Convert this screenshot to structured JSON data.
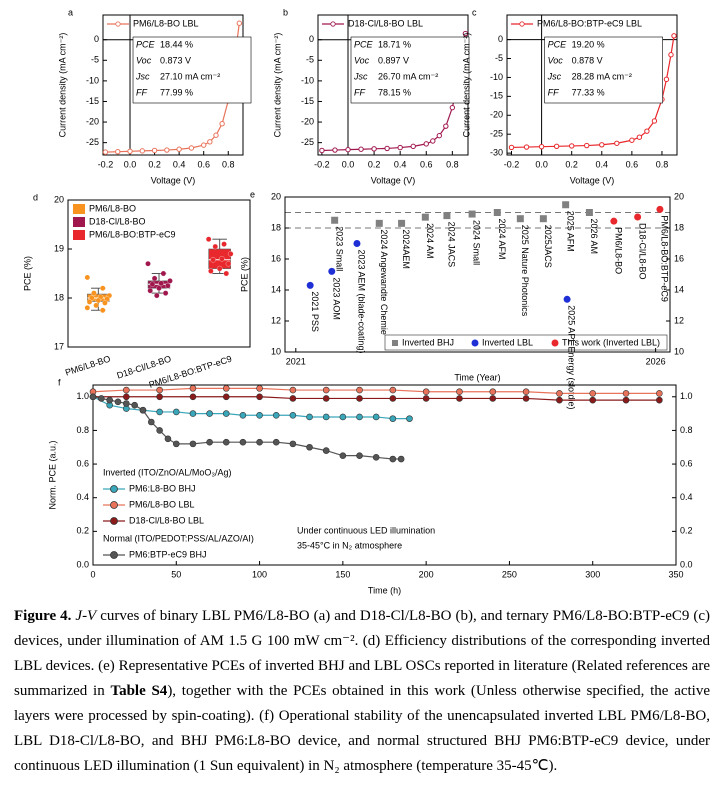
{
  "chart_data": [
    {
      "panel": "a",
      "type": "line",
      "x_label": "Voltage (V)",
      "y_label": "Current density (mA cm⁻²)",
      "xlim": [
        -0.22,
        0.92
      ],
      "ylim": [
        -28,
        6
      ],
      "xticks": [
        {
          "value": -0.2,
          "label": "-0.2"
        },
        {
          "value": 0,
          "label": "0.0"
        },
        0.2,
        0.4,
        0.6,
        0.8
      ],
      "yticks": [
        -25,
        -20,
        -15,
        -10,
        -5,
        0
      ],
      "series": [
        {
          "name": "PM6/L8-BO LBL",
          "color": "#e8735a",
          "x": [
            -0.2,
            -0.1,
            0,
            0.1,
            0.2,
            0.3,
            0.4,
            0.5,
            0.6,
            0.65,
            0.7,
            0.75,
            0.8,
            0.83,
            0.85,
            0.87,
            0.89
          ],
          "values": [
            -27.3,
            -27.2,
            -27.1,
            -27.0,
            -26.9,
            -26.8,
            -26.6,
            -26.3,
            -25.6,
            -24.8,
            -23.2,
            -20.4,
            -14.8,
            -9.6,
            -5.0,
            -0.5,
            4.0
          ]
        }
      ],
      "metrics": [
        {
          "name": "PCE",
          "value": "18.44 %"
        },
        {
          "name": "Voc",
          "value": "0.873 V"
        },
        {
          "name": "Jsc",
          "value": "27.10 mA cm⁻²"
        },
        {
          "name": "FF",
          "value": "77.99 %"
        }
      ]
    },
    {
      "panel": "b",
      "type": "line",
      "x_label": "Voltage (V)",
      "y_label": "Current density (mA cm⁻²)",
      "xlim": [
        -0.23,
        0.92
      ],
      "ylim": [
        -28,
        6
      ],
      "xticks": [
        {
          "value": -0.2,
          "label": "-0.2"
        },
        {
          "value": 0,
          "label": "0.0"
        },
        0.2,
        0.4,
        0.6,
        0.8
      ],
      "yticks": [
        -25,
        -20,
        -15,
        -10,
        -5,
        0
      ],
      "series": [
        {
          "name": "D18-Cl/L8-BO LBL",
          "color": "#a0174e",
          "x": [
            -0.2,
            -0.1,
            0,
            0.1,
            0.2,
            0.3,
            0.4,
            0.5,
            0.6,
            0.65,
            0.7,
            0.75,
            0.8,
            0.84,
            0.87,
            0.9
          ],
          "values": [
            -26.9,
            -26.8,
            -26.7,
            -26.6,
            -26.5,
            -26.4,
            -26.2,
            -25.9,
            -25.3,
            -24.6,
            -23.3,
            -21.0,
            -16.5,
            -10.5,
            -4.5,
            1.5
          ]
        }
      ],
      "metrics": [
        {
          "name": "PCE",
          "value": "18.71 %"
        },
        {
          "name": "Voc",
          "value": "0.897 V"
        },
        {
          "name": "Jsc",
          "value": "26.70 mA cm⁻²"
        },
        {
          "name": "FF",
          "value": "78.15 %"
        }
      ]
    },
    {
      "panel": "c",
      "type": "line",
      "x_label": "Voltage (V)",
      "y_label": "Current density (mA cm⁻²)",
      "xlim": [
        -0.23,
        0.9
      ],
      "ylim": [
        -30.5,
        6.5
      ],
      "xticks": [
        {
          "value": -0.2,
          "label": "-0.2"
        },
        {
          "value": 0,
          "label": "0.0"
        },
        0.2,
        0.4,
        0.6,
        0.8
      ],
      "yticks": [
        -30,
        -25,
        -20,
        -15,
        -10,
        -5,
        0
      ],
      "series": [
        {
          "name": "PM6/L8-BO:BTP-eC9 LBL",
          "color": "#e8282d",
          "x": [
            -0.2,
            -0.1,
            0,
            0.1,
            0.2,
            0.3,
            0.4,
            0.5,
            0.6,
            0.65,
            0.7,
            0.75,
            0.8,
            0.83,
            0.86,
            0.88
          ],
          "values": [
            -28.5,
            -28.4,
            -28.3,
            -28.2,
            -28.1,
            -28.0,
            -27.8,
            -27.4,
            -26.6,
            -25.8,
            -24.2,
            -21.5,
            -15.8,
            -10.5,
            -4.0,
            1.0
          ]
        }
      ],
      "metrics": [
        {
          "name": "PCE",
          "value": "19.20 %"
        },
        {
          "name": "Voc",
          "value": "0.878 V"
        },
        {
          "name": "Jsc",
          "value": "28.28 mA cm⁻²"
        },
        {
          "name": "FF",
          "value": "77.33 %"
        }
      ]
    },
    {
      "panel": "d",
      "type": "box",
      "y_label": "PCE (%)",
      "ylim": [
        17,
        20
      ],
      "yticks": [
        17,
        18,
        19,
        20
      ],
      "categories": [
        "PM6/L8-BO",
        "D18-Cl/L8-BO",
        "PM6/L8-BO:BTP-eC9"
      ],
      "series": [
        {
          "name": "PM6/L8-BO",
          "color": "#f7931e",
          "min": 17.75,
          "q1": 17.93,
          "median": 18.0,
          "q3": 18.08,
          "max": 18.2,
          "points": [
            18.42,
            18.2,
            18.1,
            18.05,
            18.02,
            18.0,
            17.98,
            17.95,
            17.92,
            17.9,
            17.85,
            17.8,
            17.75
          ]
        },
        {
          "name": "D18-Cl/L8-BO",
          "color": "#a0174e",
          "min": 18.1,
          "q1": 18.2,
          "median": 18.28,
          "q3": 18.35,
          "max": 18.5,
          "points": [
            18.7,
            18.5,
            18.4,
            18.35,
            18.3,
            18.28,
            18.25,
            18.2,
            18.15,
            18.1,
            18.05
          ]
        },
        {
          "name": "PM6/L8-BO:BTP-eC9",
          "color": "#e8282d",
          "min": 18.5,
          "q1": 18.6,
          "median": 18.78,
          "q3": 19.0,
          "max": 19.2,
          "points": [
            19.2,
            19.1,
            19.05,
            18.9,
            18.8,
            18.78,
            18.7,
            18.6,
            18.55,
            18.5
          ]
        }
      ]
    },
    {
      "panel": "e",
      "type": "scatter",
      "x_label": "Time (Year)",
      "y_label": "PCE (%)",
      "xlim": [
        2020.85,
        2026.2
      ],
      "xticks": [
        2021,
        2026
      ],
      "ylim": [
        10,
        20
      ],
      "yticks": [
        10,
        12,
        14,
        16,
        18,
        20
      ],
      "y2lim": [
        10,
        20
      ],
      "y2ticks": [
        10,
        12,
        14,
        16,
        18,
        20
      ],
      "ref_lines": [
        18,
        19
      ],
      "series": [
        {
          "name": "Inverted BHJ",
          "color": "#808080",
          "x": [
            2021.54,
            2022.16,
            2022.47,
            2022.8,
            2023.1,
            2023.45,
            2023.8,
            2024.12,
            2024.44,
            2024.75,
            2025.08
          ],
          "values": [
            18.5,
            18.3,
            18.3,
            18.7,
            18.8,
            18.9,
            19.0,
            18.6,
            18.6,
            19.5,
            19.0
          ],
          "labels": [
            "2023 Small",
            "2024 Angewandte Chemie",
            "2024AEM",
            "2024 AM",
            "2024 JACS",
            "2024 Small",
            "2024 AFM",
            "2025 Nature Photonics",
            "2025JACS",
            "2025 AFM",
            "2026 AM"
          ]
        },
        {
          "name": "Inverted LBL",
          "color": "#1f2fd6",
          "x": [
            2021.2,
            2021.5,
            2021.85,
            2024.77
          ],
          "values": [
            14.3,
            15.2,
            17.0,
            13.4
          ],
          "labels": [
            "2021 PSS",
            "2023 AOM",
            "2023 AEM (blade-coating)",
            "2025 APL Energy (slotdie)"
          ]
        },
        {
          "name": "This work (Inverted LBL)",
          "color": "#e8282d",
          "x": [
            2025.42,
            2025.75,
            2026.06
          ],
          "values": [
            18.44,
            18.71,
            19.2
          ],
          "labels": [
            "PM6/L8-BO",
            "D18-Cl/L8-BO",
            "PM6/L8-BO:BTP-eC9"
          ]
        }
      ]
    },
    {
      "panel": "f",
      "type": "line",
      "x_label": "Time (h)",
      "y_label": "Norm. PCE (a.u.)",
      "xlim": [
        0,
        350
      ],
      "xticks": [
        0,
        50,
        100,
        150,
        200,
        250,
        300,
        350
      ],
      "ylim": [
        0,
        1.07
      ],
      "yticks": [
        {
          "value": 0,
          "label": "0.0"
        },
        0.2,
        0.4,
        0.6,
        0.8,
        {
          "value": 1,
          "label": "1.0"
        }
      ],
      "y2lim": [
        0,
        1.07
      ],
      "y2ticks": [
        {
          "value": 0,
          "label": "0.0"
        },
        0.2,
        0.4,
        0.6,
        0.8,
        {
          "value": 1,
          "label": "1.0"
        }
      ],
      "legend_groups": [
        "Inverted (ITO/ZnO/AL/MoO₃/Ag)",
        "Normal (ITO/PEDOT:PSS/AL/AZO/AI)"
      ],
      "annotations": [
        "Under continuous LED illumination",
        "35-45°C in N₂ atmosphere"
      ],
      "series": [
        {
          "name": "PM6:L8-BO BHJ",
          "color": "#3aa6b9",
          "x": [
            0,
            10,
            20,
            30,
            40,
            50,
            60,
            70,
            80,
            90,
            100,
            110,
            120,
            130,
            140,
            150,
            160,
            170,
            180,
            190
          ],
          "values": [
            1.0,
            0.95,
            0.93,
            0.92,
            0.91,
            0.91,
            0.9,
            0.9,
            0.9,
            0.89,
            0.89,
            0.89,
            0.89,
            0.88,
            0.88,
            0.88,
            0.88,
            0.88,
            0.87,
            0.87
          ]
        },
        {
          "name": "PM6/L8-BO LBL",
          "color": "#e8735a",
          "x": [
            0,
            20,
            40,
            60,
            80,
            100,
            120,
            140,
            160,
            180,
            200,
            220,
            240,
            260,
            280,
            300,
            320,
            340
          ],
          "values": [
            1.03,
            1.04,
            1.04,
            1.05,
            1.05,
            1.05,
            1.04,
            1.04,
            1.04,
            1.04,
            1.03,
            1.03,
            1.03,
            1.03,
            1.02,
            1.02,
            1.02,
            1.02
          ]
        },
        {
          "name": "D18-Cl/L8-BO LBL",
          "color": "#8b1a1a",
          "x": [
            0,
            20,
            40,
            60,
            80,
            100,
            120,
            140,
            160,
            180,
            200,
            220,
            240,
            260,
            280,
            300,
            320,
            340
          ],
          "values": [
            1.0,
            1.0,
            1.0,
            1.0,
            1.0,
            1.0,
            0.99,
            0.99,
            0.99,
            0.99,
            0.99,
            0.99,
            0.99,
            0.99,
            0.98,
            0.98,
            0.98,
            0.98
          ]
        },
        {
          "name": "PM6:BTP-eC9 BHJ",
          "color": "#555555",
          "x": [
            0,
            5,
            10,
            15,
            20,
            25,
            30,
            35,
            40,
            45,
            50,
            60,
            70,
            80,
            90,
            100,
            110,
            120,
            130,
            140,
            150,
            160,
            170,
            180,
            185
          ],
          "values": [
            1.0,
            0.99,
            0.98,
            0.97,
            0.96,
            0.95,
            0.92,
            0.85,
            0.8,
            0.75,
            0.72,
            0.72,
            0.73,
            0.73,
            0.73,
            0.73,
            0.73,
            0.72,
            0.7,
            0.68,
            0.65,
            0.65,
            0.64,
            0.63,
            0.63
          ]
        }
      ]
    }
  ],
  "caption": {
    "label": "Figure 4.",
    "parts": [
      "J-V",
      " curves of binary LBL PM6/L8-BO (a) and D18-Cl/L8-BO (b), and ternary PM6/L8-BO:BTP-eC9 (c) devices, under illumination of AM 1.5 G 100 mW cm⁻². (d) Efficiency distributions of the corresponding inverted LBL devices. (e) Representative PCEs of inverted BHJ and LBL OSCs reported in literature (Related references are summarized in ",
      "Table S4",
      "), together with the PCEs obtained in this work (Unless otherwise specified, the active layers were processed by spin-coating). (f) Operational stability of the unencapsulated inverted LBL PM6/L8-BO, LBL D18-Cl/L8-BO, and BHJ PM6:L8-BO device, and normal structured BHJ PM6:BTP-eC9 device, under continuous LED illumination (1 Sun equivalent) in N₂ atmosphere (temperature 35-45℃)."
    ]
  }
}
